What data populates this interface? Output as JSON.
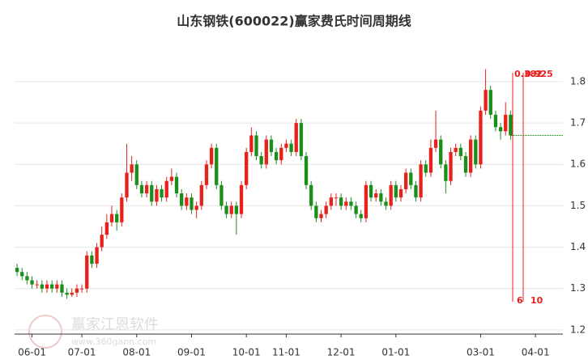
{
  "chart_data": {
    "type": "candlestick",
    "title": "山东钢铁(600022)赢家费氏时间周期线",
    "categories": [
      null,
      null,
      null,
      "06-01",
      null,
      null,
      null,
      null,
      null,
      null,
      null,
      null,
      null,
      "07-01",
      null,
      null,
      null,
      null,
      null,
      null,
      null,
      null,
      null,
      null,
      "08-01",
      null,
      null,
      null,
      null,
      null,
      null,
      null,
      null,
      null,
      null,
      "09-01",
      null,
      null,
      null,
      null,
      null,
      null,
      null,
      null,
      null,
      null,
      "10-01",
      null,
      null,
      null,
      null,
      null,
      null,
      null,
      "11-01",
      null,
      null,
      null,
      null,
      null,
      null,
      null,
      null,
      null,
      null,
      "12-01",
      null,
      null,
      null,
      null,
      null,
      null,
      null,
      null,
      null,
      null,
      "01-01",
      null,
      null,
      null,
      null,
      null,
      null,
      null,
      null,
      null,
      null,
      null,
      null,
      null,
      null,
      null,
      null,
      "03-01",
      null,
      null,
      null,
      null,
      null,
      null,
      null,
      null,
      null,
      null,
      "04-01",
      null,
      null,
      null,
      null,
      null
    ],
    "open": [
      1.35,
      1.34,
      1.33,
      1.32,
      1.31,
      1.31,
      1.3,
      1.31,
      1.3,
      1.31,
      1.29,
      1.285,
      1.29,
      1.3,
      1.3,
      1.38,
      1.36,
      1.4,
      1.43,
      1.46,
      1.48,
      1.46,
      1.52,
      1.58,
      1.6,
      1.55,
      1.53,
      1.55,
      1.51,
      1.54,
      1.52,
      1.56,
      1.57,
      1.53,
      1.5,
      1.52,
      1.49,
      1.5,
      1.55,
      1.6,
      1.64,
      1.55,
      1.5,
      1.48,
      1.5,
      1.48,
      1.55,
      1.63,
      1.67,
      1.62,
      1.6,
      1.66,
      1.63,
      1.61,
      1.64,
      1.65,
      1.63,
      1.7,
      1.62,
      1.55,
      1.5,
      1.47,
      1.48,
      1.5,
      1.52,
      1.52,
      1.5,
      1.51,
      1.5,
      1.48,
      1.47,
      1.55,
      1.52,
      1.53,
      1.51,
      1.5,
      1.55,
      1.52,
      1.54,
      1.58,
      1.55,
      1.52,
      1.6,
      1.58,
      1.64,
      1.66,
      1.6,
      1.56,
      1.63,
      1.64,
      1.62,
      1.58,
      1.66,
      1.6,
      1.73,
      1.78,
      1.72,
      1.69,
      1.68,
      1.72,
      null,
      null,
      null,
      null,
      null,
      null,
      null,
      null,
      null,
      null
    ],
    "high": [
      1.36,
      1.35,
      1.34,
      1.33,
      1.32,
      1.32,
      1.32,
      1.32,
      1.32,
      1.32,
      1.3,
      1.3,
      1.31,
      1.31,
      1.39,
      1.39,
      1.41,
      1.45,
      1.48,
      1.5,
      1.49,
      1.53,
      1.65,
      1.62,
      1.61,
      1.56,
      1.56,
      1.56,
      1.55,
      1.55,
      1.57,
      1.59,
      1.58,
      1.54,
      1.53,
      1.53,
      1.51,
      1.56,
      1.61,
      1.65,
      1.65,
      1.56,
      1.51,
      1.51,
      1.51,
      1.56,
      1.64,
      1.69,
      1.68,
      1.63,
      1.67,
      1.67,
      1.64,
      1.65,
      1.66,
      1.66,
      1.71,
      1.71,
      1.63,
      1.56,
      1.51,
      1.49,
      1.51,
      1.53,
      1.53,
      1.53,
      1.52,
      1.52,
      1.51,
      1.49,
      1.56,
      1.56,
      1.54,
      1.54,
      1.52,
      1.56,
      1.56,
      1.55,
      1.59,
      1.59,
      1.56,
      1.61,
      1.61,
      1.66,
      1.73,
      1.67,
      1.61,
      1.64,
      1.65,
      1.65,
      1.63,
      1.67,
      1.67,
      1.74,
      1.83,
      1.79,
      1.73,
      1.7,
      1.75,
      1.73,
      null,
      null,
      null,
      null,
      null,
      null,
      null,
      null,
      null,
      null
    ],
    "low": [
      1.33,
      1.32,
      1.31,
      1.3,
      1.3,
      1.29,
      1.29,
      1.29,
      1.29,
      1.28,
      1.275,
      1.28,
      1.28,
      1.29,
      1.29,
      1.35,
      1.35,
      1.39,
      1.42,
      1.45,
      1.44,
      1.45,
      1.51,
      1.56,
      1.54,
      1.52,
      1.52,
      1.5,
      1.5,
      1.51,
      1.51,
      1.55,
      1.52,
      1.49,
      1.49,
      1.48,
      1.47,
      1.49,
      1.54,
      1.59,
      1.54,
      1.49,
      1.47,
      1.47,
      1.43,
      1.47,
      1.54,
      1.62,
      1.61,
      1.59,
      1.59,
      1.62,
      1.6,
      1.6,
      1.63,
      1.62,
      1.62,
      1.61,
      1.54,
      1.49,
      1.46,
      1.46,
      1.47,
      1.49,
      1.5,
      1.49,
      1.49,
      1.49,
      1.47,
      1.46,
      1.46,
      1.51,
      1.51,
      1.5,
      1.49,
      1.49,
      1.51,
      1.51,
      1.53,
      1.54,
      1.51,
      1.51,
      1.57,
      1.57,
      1.63,
      1.59,
      1.53,
      1.55,
      1.62,
      1.61,
      1.57,
      1.57,
      1.59,
      1.59,
      1.72,
      1.71,
      1.68,
      1.66,
      1.67,
      1.66,
      null,
      null,
      null,
      null,
      null,
      null,
      null,
      null,
      null,
      null
    ],
    "close": [
      1.34,
      1.33,
      1.32,
      1.31,
      1.31,
      1.3,
      1.31,
      1.3,
      1.31,
      1.29,
      1.285,
      1.29,
      1.3,
      1.3,
      1.38,
      1.36,
      1.4,
      1.43,
      1.46,
      1.48,
      1.46,
      1.52,
      1.58,
      1.6,
      1.55,
      1.53,
      1.55,
      1.51,
      1.54,
      1.52,
      1.56,
      1.57,
      1.53,
      1.5,
      1.52,
      1.49,
      1.5,
      1.55,
      1.6,
      1.64,
      1.55,
      1.5,
      1.48,
      1.5,
      1.48,
      1.55,
      1.63,
      1.67,
      1.62,
      1.6,
      1.66,
      1.63,
      1.61,
      1.64,
      1.65,
      1.63,
      1.7,
      1.62,
      1.55,
      1.5,
      1.47,
      1.48,
      1.5,
      1.52,
      1.52,
      1.5,
      1.51,
      1.5,
      1.48,
      1.47,
      1.55,
      1.52,
      1.53,
      1.51,
      1.5,
      1.55,
      1.52,
      1.54,
      1.58,
      1.55,
      1.52,
      1.6,
      1.58,
      1.64,
      1.66,
      1.6,
      1.56,
      1.63,
      1.64,
      1.62,
      1.58,
      1.66,
      1.6,
      1.73,
      1.78,
      1.72,
      1.69,
      1.68,
      1.72,
      1.67,
      null,
      null,
      null,
      null,
      null,
      null,
      null,
      null,
      null,
      null
    ],
    "up_color": "#e8211c",
    "down_color": "#1b8e1b",
    "ylim": [
      1.19,
      1.88
    ],
    "yticks": [
      1.2,
      1.3,
      1.4,
      1.5,
      1.6,
      1.7,
      1.8
    ],
    "grid": true,
    "cycle_labels_top": [
      "0.382",
      "0.925"
    ],
    "cycle_labels_bottom": [
      "6",
      "10"
    ],
    "cycle_color": "#e8211c",
    "watermark": {
      "name": "赢家江恩软件",
      "url": "www.360gann.com"
    }
  }
}
